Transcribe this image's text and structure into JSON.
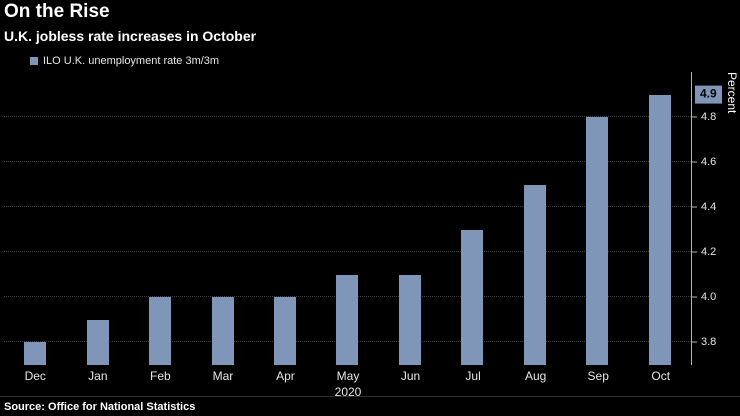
{
  "source": "Source: Office for National Statistics",
  "colors": {
    "background": "#000000",
    "text": "#ffffff",
    "bar": "#7f96b9",
    "grid": "#3d3d3d",
    "axis": "#b3b3b3",
    "badge_text": "#000000"
  },
  "chart_data": {
    "type": "bar",
    "title": "On the Rise",
    "subtitle": "U.K. jobless rate increases in October",
    "legend": [
      {
        "label": "ILO U.K. unemployment rate 3m/3m",
        "color": "#7f96b9"
      }
    ],
    "legend_position": "top-left",
    "categories": [
      "Dec",
      "Jan",
      "Feb",
      "Mar",
      "Apr",
      "May",
      "Jun",
      "Jul",
      "Aug",
      "Sep",
      "Oct"
    ],
    "values": [
      3.8,
      3.9,
      4.0,
      4.0,
      4.0,
      4.1,
      4.1,
      4.3,
      4.5,
      4.8,
      4.9
    ],
    "x_sub_label": {
      "index": 5,
      "text": "2020"
    },
    "xlabel": "",
    "ylabel": "Percent",
    "ylim": [
      3.7,
      5.0
    ],
    "yticks": [
      3.8,
      4.0,
      4.2,
      4.4,
      4.6,
      4.8
    ],
    "grid": true,
    "bar_color": "#7f96b9",
    "last_value_label": "4.9"
  }
}
